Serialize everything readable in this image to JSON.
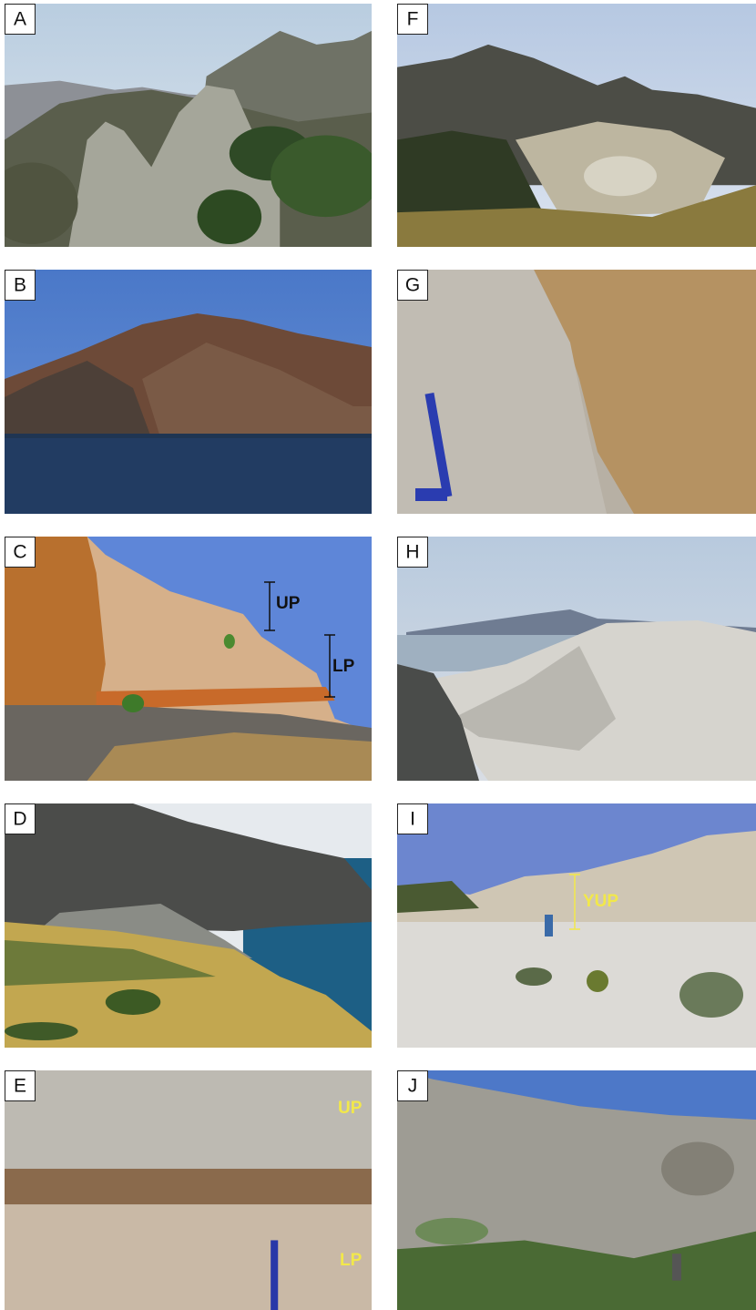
{
  "panels": [
    {
      "label": "A"
    },
    {
      "label": "B"
    },
    {
      "label": "C",
      "annotations": [
        {
          "text": "UP"
        },
        {
          "text": "LP"
        }
      ]
    },
    {
      "label": "D"
    },
    {
      "label": "E",
      "annotations": [
        {
          "text": "UP"
        },
        {
          "text": "LP"
        }
      ]
    },
    {
      "label": "F"
    },
    {
      "label": "G"
    },
    {
      "label": "H"
    },
    {
      "label": "I",
      "annotations": [
        {
          "text": "YUP"
        }
      ]
    },
    {
      "label": "J"
    }
  ]
}
